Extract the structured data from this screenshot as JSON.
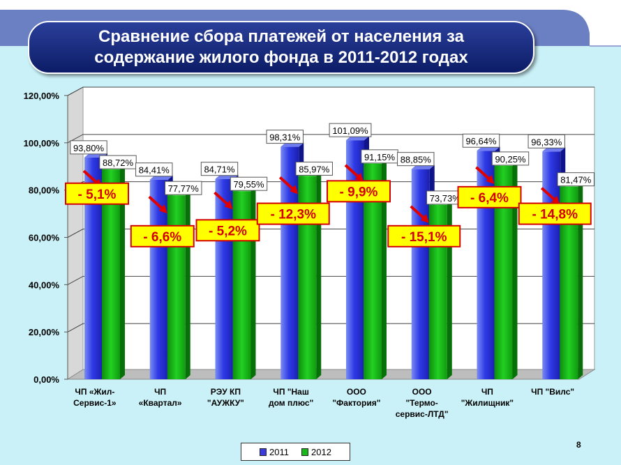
{
  "slide": {
    "title_line1": "Сравнение сбора платежей от населения за",
    "title_line2": "содержание жилого фонда в 2011-2012 годах",
    "page_number": "8",
    "colors": {
      "header_band": "#6b7fc3",
      "plot_bg": "#c9f1f7",
      "title_bg": "#1a2a7e",
      "change_box": "#ffff00",
      "change_text": "#d40000",
      "arrow": "#e00000"
    }
  },
  "chart_data": {
    "type": "bar",
    "title": "",
    "categories": [
      [
        "ЧП «Жил-",
        "Сервис-1»"
      ],
      [
        "ЧП",
        "«Квартал»"
      ],
      [
        "РЭУ КП",
        "\"АУЖКУ\""
      ],
      [
        "ЧП \"Наш",
        "дом плюс\""
      ],
      [
        "ООО",
        "\"Фактория\""
      ],
      [
        "ООО",
        "\"Термо-",
        "сервис-ЛТД\""
      ],
      [
        "ЧП",
        "\"Жилищник\""
      ],
      [
        "ЧП \"Вилс\""
      ]
    ],
    "series": [
      {
        "name": "2011",
        "color": "#2a35e0",
        "values": [
          93.8,
          84.41,
          84.71,
          98.31,
          101.09,
          88.85,
          96.64,
          96.33
        ],
        "labels": [
          "93,80%",
          "84,41%",
          "84,71%",
          "98,31%",
          "101,09%",
          "88,85%",
          "96,64%",
          "96,33%"
        ]
      },
      {
        "name": "2012",
        "color": "#18b818",
        "values": [
          88.72,
          77.77,
          79.55,
          85.97,
          91.15,
          73.73,
          90.25,
          81.47
        ],
        "labels": [
          "88,72%",
          "77,77%",
          "79,55%",
          "85,97%",
          "91,15%",
          "73,73%",
          "90,25%",
          "81,47%"
        ]
      }
    ],
    "changes": [
      "- 5,1%",
      "- 6,6%",
      "- 5,2%",
      "- 12,3%",
      "- 9,9%",
      "- 15,1%",
      "- 6,4%",
      "- 14,8%"
    ],
    "change_value_levels": [
      78.5,
      60.5,
      63.0,
      70.0,
      79.5,
      60.5,
      77.0,
      70.0
    ],
    "ylim": [
      0,
      120
    ],
    "yticks": [
      0,
      20,
      40,
      60,
      80,
      100,
      120
    ],
    "ytick_labels": [
      "0,00%",
      "20,00%",
      "40,00%",
      "60,00%",
      "80,00%",
      "100,00%",
      "120,00%"
    ],
    "xlabel": "",
    "ylabel": "",
    "grid": true,
    "legend": "bottom"
  }
}
